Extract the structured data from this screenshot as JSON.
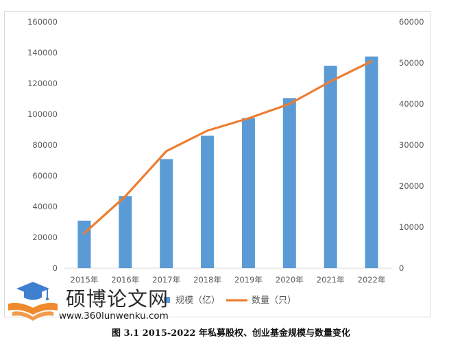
{
  "chart_data": {
    "type": "bar+line",
    "title": "",
    "categories": [
      "2015年",
      "2016年",
      "2017年",
      "2018年",
      "2019年",
      "2020年",
      "2021年",
      "2022年"
    ],
    "series": [
      {
        "name": "规模（亿）",
        "kind": "bar",
        "axis": "left",
        "color": "#5b9bd5",
        "values": [
          30800,
          46800,
          70800,
          86000,
          97500,
          110500,
          131500,
          137500
        ]
      },
      {
        "name": "数量（只）",
        "kind": "line",
        "axis": "right",
        "color": "#ed7d31",
        "values": [
          8500,
          17500,
          28500,
          33500,
          36500,
          40000,
          45500,
          50400
        ]
      }
    ],
    "y_left": {
      "min": 0,
      "max": 160000,
      "step": 20000,
      "ticks": [
        "0",
        "20000",
        "40000",
        "60000",
        "80000",
        "100000",
        "120000",
        "140000",
        "160000"
      ]
    },
    "y_right": {
      "min": 0,
      "max": 60000,
      "step": 10000,
      "ticks": [
        "0",
        "10000",
        "20000",
        "30000",
        "40000",
        "50000",
        "60000"
      ]
    },
    "legend_position": "bottom",
    "grid": false
  },
  "caption": "图 3.1 2015-2022 年私募股权、创业基金规模与数量变化",
  "watermark": {
    "title": "硕博论文网",
    "url": "www.360lunwenku.com"
  },
  "colors": {
    "bar": "#5b9bd5",
    "line": "#ed7d31",
    "logo_blue": "#3f7fd0",
    "logo_orange": "#f08a2c"
  }
}
